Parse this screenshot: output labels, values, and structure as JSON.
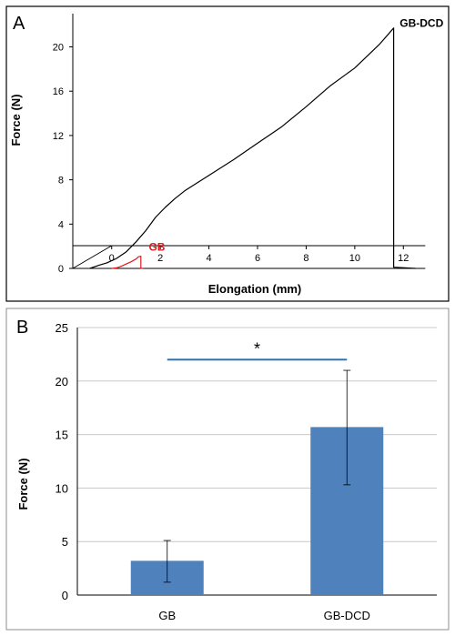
{
  "panels": {
    "a": {
      "label": "A"
    },
    "b": {
      "label": "B"
    }
  },
  "colors": {
    "gb_curve": "#e31a1c",
    "gb_dcd_curve": "#000000",
    "bar_fill": "#4f81bd",
    "significance_line": "#2e75b6",
    "grid": "#c8c8c8"
  },
  "chart_data": [
    {
      "type": "line",
      "panel": "A",
      "xlabel": "Elongation (mm)",
      "ylabel": "Force (N)",
      "xlim": [
        -1.6,
        13
      ],
      "ylim": [
        0,
        23
      ],
      "x_ticks": [
        0,
        2,
        4,
        6,
        8,
        10,
        12
      ],
      "y_ticks": [
        0,
        4,
        8,
        12,
        16,
        20
      ],
      "grid": false,
      "series": [
        {
          "name": "GB-DCD",
          "color": "#000000",
          "x": [
            -0.9,
            -0.5,
            -0.2,
            0.2,
            0.6,
            1.0,
            1.4,
            1.8,
            2.2,
            2.6,
            3.0,
            3.5,
            4.0,
            5.0,
            6.0,
            7.0,
            8.0,
            9.0,
            10.0,
            11.0,
            11.6,
            11.6,
            11.6,
            11.7,
            12.5
          ],
          "y": [
            0.0,
            0.3,
            0.5,
            0.9,
            1.5,
            2.4,
            3.4,
            4.6,
            5.5,
            6.3,
            7.0,
            7.7,
            8.4,
            9.8,
            11.3,
            12.8,
            14.6,
            16.5,
            18.1,
            20.2,
            21.7,
            7.0,
            0.1,
            0.1,
            0.0
          ]
        },
        {
          "name": "GB",
          "color": "#e31a1c",
          "x": [
            0.0,
            0.2,
            0.4,
            0.6,
            0.8,
            1.0,
            1.1,
            1.2,
            1.2,
            1.2,
            1.3
          ],
          "y": [
            0.0,
            0.05,
            0.2,
            0.4,
            0.6,
            0.85,
            1.05,
            1.1,
            0.5,
            0.0,
            0.0
          ]
        }
      ],
      "annotations": [
        {
          "text": "GB-DCD",
          "x": 11.7,
          "y": 21.8
        },
        {
          "text": "GB",
          "x": 1.3,
          "y": 1.6
        }
      ]
    },
    {
      "type": "bar",
      "panel": "B",
      "xlabel": "",
      "ylabel": "Force (N)",
      "ylim": [
        0,
        25
      ],
      "y_ticks": [
        0,
        5,
        10,
        15,
        20,
        25
      ],
      "grid": true,
      "categories": [
        "GB",
        "GB-DCD"
      ],
      "values": [
        3.2,
        15.7
      ],
      "error_low": [
        1.2,
        10.3
      ],
      "error_high": [
        5.1,
        21.0
      ],
      "significance": {
        "marker": "*",
        "between": [
          "GB",
          "GB-DCD"
        ],
        "y": 22
      }
    }
  ]
}
